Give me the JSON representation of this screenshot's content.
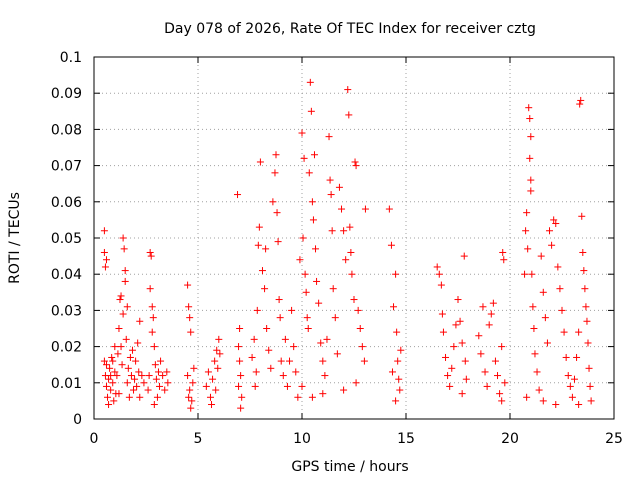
{
  "chart_data": {
    "type": "scatter",
    "title": "Day 078 of 2026, Rate Of TEC Index for receiver cztg",
    "xlabel": "GPS time / hours",
    "ylabel": "ROTI / TECUs",
    "xlim": [
      0,
      25
    ],
    "ylim": [
      0,
      0.1
    ],
    "x_ticks": [
      0,
      5,
      10,
      15,
      20,
      25
    ],
    "y_ticks": [
      0,
      0.01,
      0.02,
      0.03,
      0.04,
      0.05,
      0.06,
      0.07,
      0.08,
      0.09,
      0.1
    ],
    "x_tick_labels": [
      "0",
      "5",
      "10",
      "15",
      "20",
      "25"
    ],
    "y_tick_labels": [
      "0",
      "0.01",
      "0.02",
      "0.03",
      "0.04",
      "0.05",
      "0.06",
      "0.07",
      "0.08",
      "0.09",
      "0.1"
    ],
    "grid": true,
    "marker": "plus",
    "color": "#ff0000",
    "series": [
      {
        "name": "ROTI",
        "points": [
          [
            0.5,
            0.052
          ],
          [
            0.5,
            0.046
          ],
          [
            0.55,
            0.042
          ],
          [
            0.6,
            0.044
          ],
          [
            0.5,
            0.016
          ],
          [
            0.55,
            0.012
          ],
          [
            0.6,
            0.009
          ],
          [
            0.65,
            0.006
          ],
          [
            0.7,
            0.011
          ],
          [
            0.75,
            0.014
          ],
          [
            0.8,
            0.008
          ],
          [
            0.85,
            0.017
          ],
          [
            0.9,
            0.01
          ],
          [
            0.95,
            0.005
          ],
          [
            1.0,
            0.013
          ],
          [
            1.05,
            0.007
          ],
          [
            0.6,
            0.015
          ],
          [
            0.7,
            0.004
          ],
          [
            0.8,
            0.012
          ],
          [
            0.9,
            0.016
          ],
          [
            1.1,
            0.012
          ],
          [
            1.15,
            0.018
          ],
          [
            1.2,
            0.025
          ],
          [
            1.25,
            0.033
          ],
          [
            1.3,
            0.02
          ],
          [
            1.35,
            0.015
          ],
          [
            1.4,
            0.05
          ],
          [
            1.45,
            0.047
          ],
          [
            1.5,
            0.041
          ],
          [
            1.5,
            0.038
          ],
          [
            1.4,
            0.029
          ],
          [
            1.55,
            0.022
          ],
          [
            1.6,
            0.01
          ],
          [
            1.65,
            0.014
          ],
          [
            1.7,
            0.006
          ],
          [
            1.75,
            0.017
          ],
          [
            1.8,
            0.012
          ],
          [
            1.85,
            0.019
          ],
          [
            1.9,
            0.008
          ],
          [
            1.95,
            0.011
          ],
          [
            2.0,
            0.016
          ],
          [
            2.05,
            0.009
          ],
          [
            2.1,
            0.021
          ],
          [
            2.15,
            0.013
          ],
          [
            2.2,
            0.006
          ],
          [
            2.3,
            0.012
          ],
          [
            2.2,
            0.027
          ],
          [
            2.4,
            0.01
          ],
          [
            1.3,
            0.034
          ],
          [
            1.6,
            0.031
          ],
          [
            1.2,
            0.007
          ],
          [
            1.0,
            0.02
          ],
          [
            2.6,
            0.008
          ],
          [
            2.65,
            0.012
          ],
          [
            2.7,
            0.046
          ],
          [
            2.75,
            0.045
          ],
          [
            2.8,
            0.031
          ],
          [
            2.85,
            0.028
          ],
          [
            2.8,
            0.024
          ],
          [
            2.9,
            0.02
          ],
          [
            2.95,
            0.015
          ],
          [
            3.0,
            0.011
          ],
          [
            3.05,
            0.006
          ],
          [
            3.1,
            0.013
          ],
          [
            3.15,
            0.009
          ],
          [
            3.2,
            0.016
          ],
          [
            3.3,
            0.012
          ],
          [
            3.4,
            0.008
          ],
          [
            3.5,
            0.013
          ],
          [
            3.55,
            0.01
          ],
          [
            2.7,
            0.036
          ],
          [
            2.9,
            0.004
          ],
          [
            4.5,
            0.037
          ],
          [
            4.55,
            0.031
          ],
          [
            4.6,
            0.028
          ],
          [
            4.65,
            0.024
          ],
          [
            4.5,
            0.012
          ],
          [
            4.6,
            0.008
          ],
          [
            4.7,
            0.005
          ],
          [
            4.75,
            0.01
          ],
          [
            4.8,
            0.014
          ],
          [
            4.55,
            0.006
          ],
          [
            4.65,
            0.003
          ],
          [
            5.4,
            0.009
          ],
          [
            5.5,
            0.013
          ],
          [
            5.6,
            0.006
          ],
          [
            5.7,
            0.011
          ],
          [
            5.8,
            0.016
          ],
          [
            5.9,
            0.019
          ],
          [
            6.0,
            0.022
          ],
          [
            5.95,
            0.014
          ],
          [
            5.65,
            0.004
          ],
          [
            5.85,
            0.008
          ],
          [
            6.05,
            0.018
          ],
          [
            6.9,
            0.062
          ],
          [
            7.0,
            0.025
          ],
          [
            6.95,
            0.02
          ],
          [
            7.05,
            0.012
          ],
          [
            7.1,
            0.006
          ],
          [
            7.0,
            0.016
          ],
          [
            6.95,
            0.009
          ],
          [
            7.05,
            0.003
          ],
          [
            7.6,
            0.017
          ],
          [
            7.7,
            0.022
          ],
          [
            7.8,
            0.013
          ],
          [
            7.85,
            0.03
          ],
          [
            7.9,
            0.048
          ],
          [
            7.95,
            0.053
          ],
          [
            8.0,
            0.071
          ],
          [
            8.1,
            0.041
          ],
          [
            8.2,
            0.036
          ],
          [
            8.3,
            0.025
          ],
          [
            8.4,
            0.019
          ],
          [
            8.5,
            0.014
          ],
          [
            8.6,
            0.06
          ],
          [
            8.7,
            0.068
          ],
          [
            8.8,
            0.057
          ],
          [
            8.85,
            0.049
          ],
          [
            8.9,
            0.033
          ],
          [
            8.95,
            0.028
          ],
          [
            9.0,
            0.016
          ],
          [
            9.1,
            0.012
          ],
          [
            9.2,
            0.022
          ],
          [
            9.3,
            0.009
          ],
          [
            9.4,
            0.016
          ],
          [
            9.5,
            0.03
          ],
          [
            9.6,
            0.02
          ],
          [
            9.7,
            0.013
          ],
          [
            9.8,
            0.006
          ],
          [
            8.75,
            0.073
          ],
          [
            8.25,
            0.047
          ],
          [
            7.75,
            0.009
          ],
          [
            9.9,
            0.044
          ],
          [
            10.0,
            0.079
          ],
          [
            10.05,
            0.05
          ],
          [
            10.1,
            0.072
          ],
          [
            10.15,
            0.04
          ],
          [
            10.2,
            0.035
          ],
          [
            10.25,
            0.028
          ],
          [
            10.3,
            0.025
          ],
          [
            10.35,
            0.068
          ],
          [
            10.4,
            0.093
          ],
          [
            10.45,
            0.085
          ],
          [
            10.5,
            0.06
          ],
          [
            10.55,
            0.055
          ],
          [
            10.6,
            0.073
          ],
          [
            10.65,
            0.047
          ],
          [
            10.7,
            0.038
          ],
          [
            10.8,
            0.032
          ],
          [
            10.9,
            0.021
          ],
          [
            11.0,
            0.016
          ],
          [
            11.1,
            0.012
          ],
          [
            11.2,
            0.022
          ],
          [
            11.3,
            0.078
          ],
          [
            11.35,
            0.066
          ],
          [
            11.4,
            0.062
          ],
          [
            11.45,
            0.052
          ],
          [
            11.5,
            0.036
          ],
          [
            11.6,
            0.028
          ],
          [
            11.7,
            0.018
          ],
          [
            11.8,
            0.064
          ],
          [
            11.9,
            0.058
          ],
          [
            12.0,
            0.052
          ],
          [
            12.1,
            0.044
          ],
          [
            12.2,
            0.091
          ],
          [
            12.25,
            0.084
          ],
          [
            12.3,
            0.053
          ],
          [
            12.35,
            0.046
          ],
          [
            12.4,
            0.04
          ],
          [
            12.5,
            0.033
          ],
          [
            12.55,
            0.071
          ],
          [
            12.6,
            0.07
          ],
          [
            12.7,
            0.03
          ],
          [
            12.8,
            0.025
          ],
          [
            12.9,
            0.02
          ],
          [
            13.0,
            0.016
          ],
          [
            13.05,
            0.058
          ],
          [
            10.0,
            0.009
          ],
          [
            10.5,
            0.006
          ],
          [
            11.0,
            0.007
          ],
          [
            12.0,
            0.008
          ],
          [
            12.6,
            0.01
          ],
          [
            14.2,
            0.058
          ],
          [
            14.3,
            0.048
          ],
          [
            14.4,
            0.031
          ],
          [
            14.5,
            0.04
          ],
          [
            14.55,
            0.024
          ],
          [
            14.6,
            0.016
          ],
          [
            14.65,
            0.011
          ],
          [
            14.7,
            0.008
          ],
          [
            14.5,
            0.005
          ],
          [
            14.35,
            0.013
          ],
          [
            14.75,
            0.019
          ],
          [
            16.5,
            0.042
          ],
          [
            16.6,
            0.04
          ],
          [
            16.7,
            0.037
          ],
          [
            16.75,
            0.029
          ],
          [
            16.8,
            0.024
          ],
          [
            16.9,
            0.017
          ],
          [
            17.0,
            0.012
          ],
          [
            17.1,
            0.009
          ],
          [
            17.2,
            0.014
          ],
          [
            17.3,
            0.02
          ],
          [
            17.4,
            0.026
          ],
          [
            17.5,
            0.033
          ],
          [
            17.6,
            0.027
          ],
          [
            17.7,
            0.021
          ],
          [
            17.8,
            0.045
          ],
          [
            17.85,
            0.016
          ],
          [
            17.9,
            0.011
          ],
          [
            17.7,
            0.007
          ],
          [
            18.5,
            0.023
          ],
          [
            18.6,
            0.018
          ],
          [
            18.7,
            0.031
          ],
          [
            18.8,
            0.013
          ],
          [
            18.9,
            0.009
          ],
          [
            19.0,
            0.026
          ],
          [
            19.1,
            0.029
          ],
          [
            19.2,
            0.032
          ],
          [
            19.3,
            0.016
          ],
          [
            19.4,
            0.012
          ],
          [
            19.5,
            0.007
          ],
          [
            19.6,
            0.02
          ],
          [
            19.65,
            0.046
          ],
          [
            19.7,
            0.044
          ],
          [
            19.75,
            0.01
          ],
          [
            19.6,
            0.005
          ],
          [
            20.7,
            0.04
          ],
          [
            20.75,
            0.052
          ],
          [
            20.8,
            0.057
          ],
          [
            20.85,
            0.047
          ],
          [
            20.9,
            0.086
          ],
          [
            20.95,
            0.083
          ],
          [
            21.0,
            0.078
          ],
          [
            20.95,
            0.072
          ],
          [
            21.0,
            0.066
          ],
          [
            21.0,
            0.063
          ],
          [
            21.05,
            0.04
          ],
          [
            21.1,
            0.031
          ],
          [
            21.15,
            0.025
          ],
          [
            21.2,
            0.018
          ],
          [
            21.3,
            0.013
          ],
          [
            21.4,
            0.008
          ],
          [
            21.5,
            0.045
          ],
          [
            21.6,
            0.035
          ],
          [
            21.7,
            0.028
          ],
          [
            21.8,
            0.021
          ],
          [
            21.9,
            0.052
          ],
          [
            22.0,
            0.048
          ],
          [
            22.1,
            0.055
          ],
          [
            22.2,
            0.054
          ],
          [
            22.3,
            0.042
          ],
          [
            22.4,
            0.036
          ],
          [
            22.5,
            0.03
          ],
          [
            22.6,
            0.024
          ],
          [
            22.7,
            0.017
          ],
          [
            22.8,
            0.012
          ],
          [
            22.9,
            0.009
          ],
          [
            20.8,
            0.006
          ],
          [
            21.6,
            0.005
          ],
          [
            22.2,
            0.004
          ],
          [
            23.0,
            0.006
          ],
          [
            23.1,
            0.011
          ],
          [
            23.2,
            0.017
          ],
          [
            23.3,
            0.024
          ],
          [
            23.35,
            0.087
          ],
          [
            23.4,
            0.088
          ],
          [
            23.45,
            0.056
          ],
          [
            23.5,
            0.046
          ],
          [
            23.55,
            0.041
          ],
          [
            23.6,
            0.036
          ],
          [
            23.65,
            0.031
          ],
          [
            23.7,
            0.027
          ],
          [
            23.75,
            0.021
          ],
          [
            23.8,
            0.014
          ],
          [
            23.85,
            0.009
          ],
          [
            23.9,
            0.005
          ],
          [
            23.3,
            0.004
          ]
        ]
      }
    ]
  }
}
